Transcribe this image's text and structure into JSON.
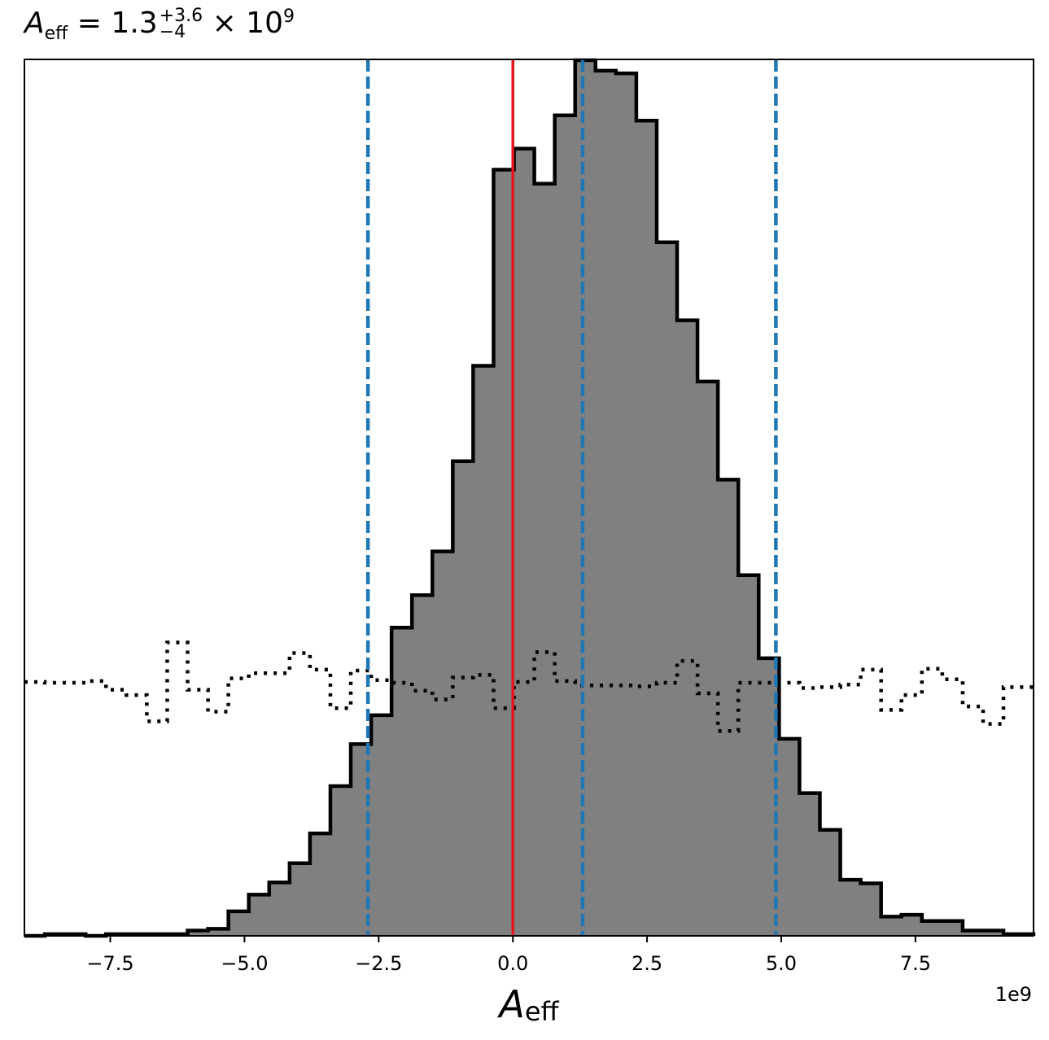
{
  "chart_data": {
    "type": "histogram",
    "title": {
      "symbol": "A",
      "subscript": "eff",
      "equals": "=",
      "median": "1.3",
      "upper": "+3.6",
      "lower": "−4",
      "scale_text": "× 10",
      "scale_exponent": "9"
    },
    "xlabel": {
      "symbol": "A",
      "subscript": "eff"
    },
    "offset_label": "1e9",
    "xlim": [
      -9.1,
      9.7
    ],
    "ylim": [
      0,
      1
    ],
    "grid": false,
    "xticks": [
      -7.5,
      -5.0,
      -2.5,
      0.0,
      2.5,
      5.0,
      7.5
    ],
    "xtick_labels": [
      "−7.5",
      "−5.0",
      "−2.5",
      "0.0",
      "2.5",
      "5.0",
      "7.5"
    ],
    "posterior": {
      "fill_color": "#808080",
      "edge_color": "#000000",
      "bin_edges": [
        -9.1,
        -8.72,
        -8.34,
        -7.96,
        -7.58,
        -7.2,
        -6.82,
        -6.44,
        -6.06,
        -5.68,
        -5.3,
        -4.92,
        -4.54,
        -4.16,
        -3.78,
        -3.4,
        -3.02,
        -2.64,
        -2.26,
        -1.88,
        -1.5,
        -1.12,
        -0.74,
        -0.36,
        0.02,
        0.4,
        0.78,
        1.16,
        1.54,
        1.92,
        2.3,
        2.68,
        3.06,
        3.44,
        3.82,
        4.2,
        4.58,
        4.96,
        5.34,
        5.72,
        6.1,
        6.48,
        6.86,
        7.24,
        7.62,
        8.0,
        8.38,
        8.76,
        9.14,
        9.52,
        9.7
      ],
      "heights": [
        0.0,
        0.002,
        0.002,
        0.0,
        0.002,
        0.002,
        0.002,
        0.002,
        0.006,
        0.008,
        0.028,
        0.047,
        0.061,
        0.083,
        0.117,
        0.171,
        0.219,
        0.252,
        0.352,
        0.389,
        0.439,
        0.542,
        0.651,
        0.875,
        0.899,
        0.859,
        0.937,
        1.0,
        0.988,
        0.985,
        0.931,
        0.792,
        0.703,
        0.633,
        0.521,
        0.412,
        0.317,
        0.225,
        0.163,
        0.121,
        0.064,
        0.06,
        0.022,
        0.024,
        0.017,
        0.017,
        0.006,
        0.006,
        0.002,
        0.002
      ]
    },
    "prior": {
      "line_style": "dotted",
      "color": "#000000",
      "bin_edges": [
        -9.1,
        -8.72,
        -8.34,
        -7.96,
        -7.58,
        -7.2,
        -6.82,
        -6.44,
        -6.06,
        -5.68,
        -5.3,
        -4.92,
        -4.54,
        -4.16,
        -3.78,
        -3.4,
        -3.02,
        -2.64,
        -2.26,
        -1.88,
        -1.5,
        -1.12,
        -0.74,
        -0.36,
        0.02,
        0.4,
        0.78,
        1.16,
        1.54,
        1.92,
        2.3,
        2.68,
        3.06,
        3.44,
        3.82,
        4.2,
        4.58,
        4.96,
        5.34,
        5.72,
        6.1,
        6.48,
        6.86,
        7.24,
        7.62,
        8.0,
        8.38,
        8.76,
        9.14,
        9.52,
        9.7
      ],
      "heights": [
        0.29,
        0.289,
        0.289,
        0.291,
        0.281,
        0.275,
        0.245,
        0.335,
        0.281,
        0.256,
        0.294,
        0.3,
        0.3,
        0.323,
        0.304,
        0.26,
        0.303,
        0.292,
        0.289,
        0.28,
        0.27,
        0.295,
        0.298,
        0.26,
        0.29,
        0.324,
        0.291,
        0.286,
        0.286,
        0.286,
        0.285,
        0.289,
        0.314,
        0.277,
        0.234,
        0.289,
        0.289,
        0.289,
        0.283,
        0.284,
        0.287,
        0.304,
        0.258,
        0.275,
        0.305,
        0.293,
        0.262,
        0.242,
        0.284,
        0.284
      ]
    },
    "vlines": [
      {
        "x": 0.0,
        "color": "#e8141c",
        "style": "solid"
      },
      {
        "x": -2.7,
        "color": "#1f77b4",
        "style": "dashed"
      },
      {
        "x": 1.3,
        "color": "#1f77b4",
        "style": "dashed"
      },
      {
        "x": 4.9,
        "color": "#1f77b4",
        "style": "dashed"
      }
    ]
  }
}
